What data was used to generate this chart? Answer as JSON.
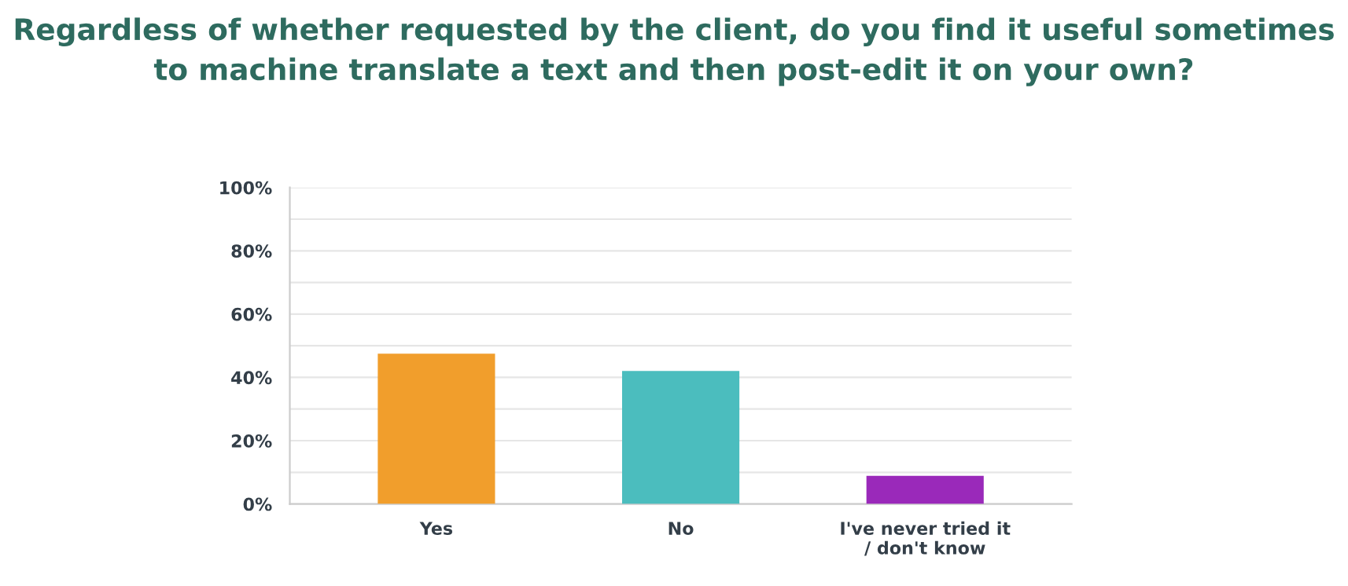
{
  "chart_data": {
    "type": "bar",
    "title": "Regardless of whether requested by the client, do you find it useful sometimes\nto machine translate a text and then post-edit it on your own?",
    "categories": [
      "Yes",
      "No",
      "I've never tried it\n/ don't know"
    ],
    "values": [
      47.5,
      42,
      8.9
    ],
    "colors": [
      "#f19e2c",
      "#4bbdbe",
      "#9a29ba"
    ],
    "ylim": [
      0,
      100
    ],
    "yticks": [
      {
        "value": 0,
        "label": "0%"
      },
      {
        "value": 10,
        "label": null
      },
      {
        "value": 20,
        "label": "20%"
      },
      {
        "value": 30,
        "label": null
      },
      {
        "value": 40,
        "label": "40%"
      },
      {
        "value": 50,
        "label": null
      },
      {
        "value": 60,
        "label": "60%"
      },
      {
        "value": 70,
        "label": null
      },
      {
        "value": 80,
        "label": "80%"
      },
      {
        "value": 90,
        "label": null
      },
      {
        "value": 100,
        "label": "100%"
      }
    ],
    "grid": "y"
  }
}
